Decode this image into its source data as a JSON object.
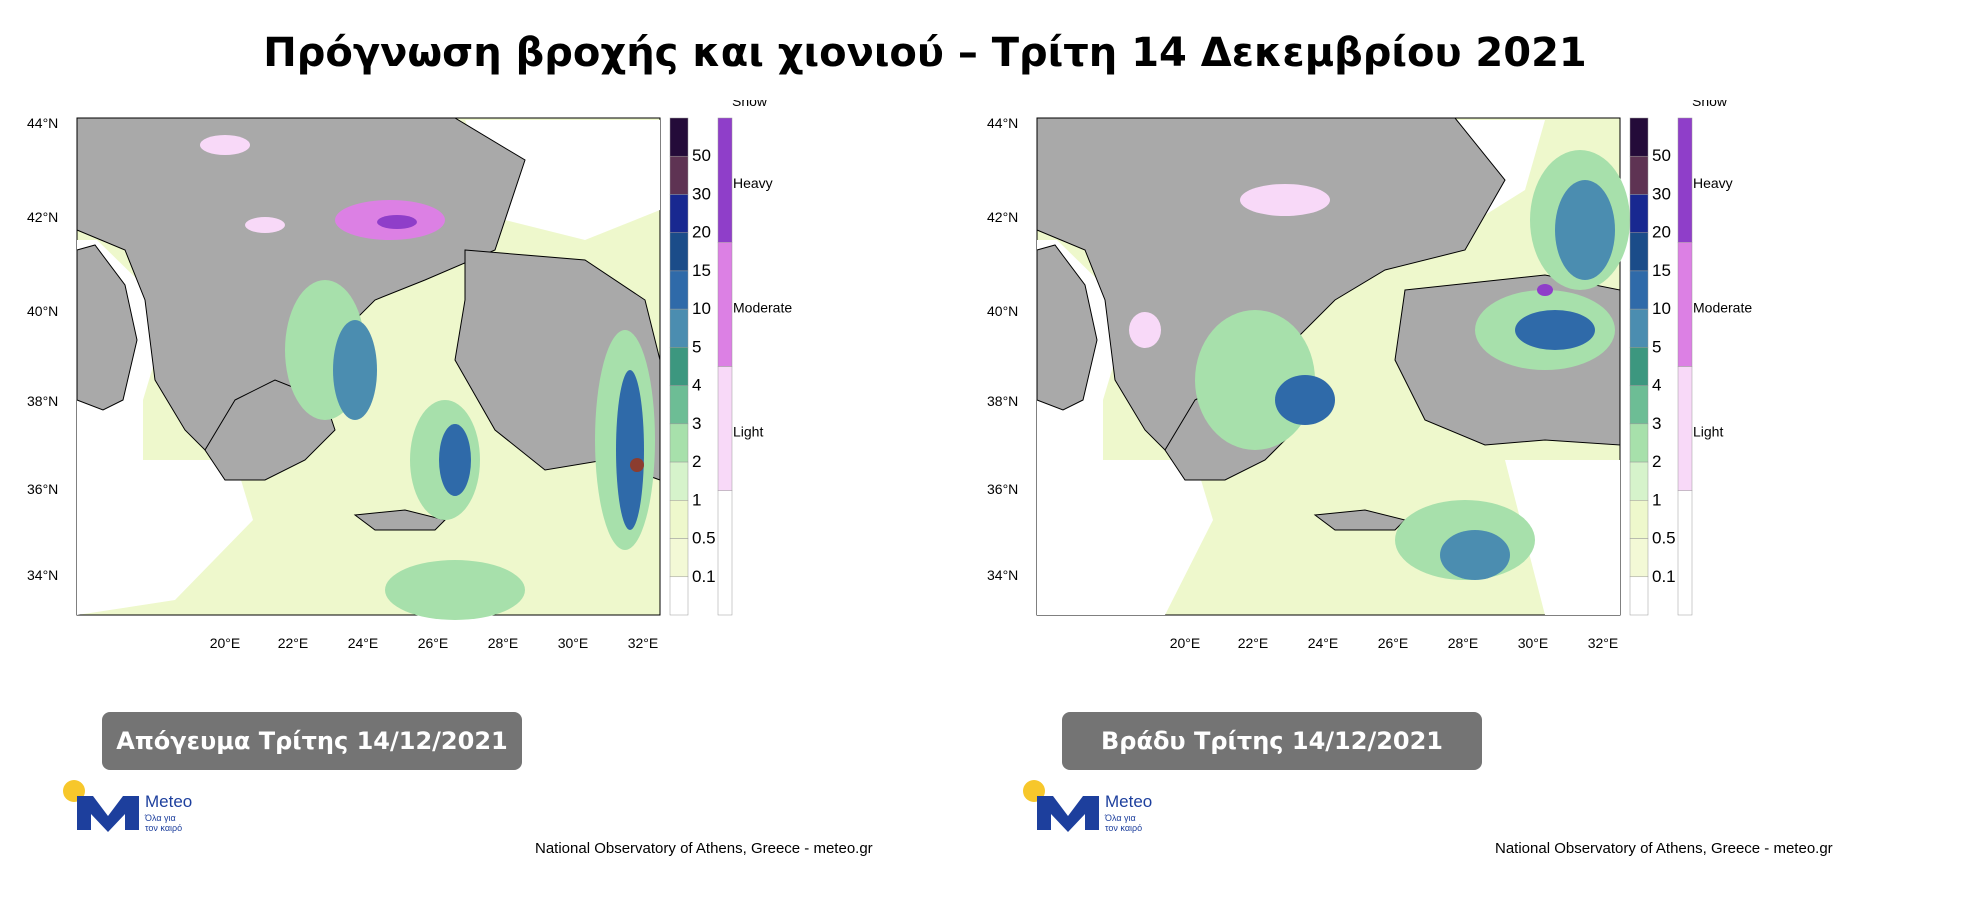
{
  "title": "Πρόγνωση βροχής και χιονιού – Τρίτη 14 Δεκεμβρίου 2021",
  "panels": [
    {
      "badge": "Απόγευμα Τρίτης 14/12/2021"
    },
    {
      "badge": "Βράδυ Τρίτης 14/12/2021"
    }
  ],
  "credit": "National Observatory of Athens, Greece - meteo.gr",
  "logo": {
    "brand": "Meteo",
    "tagline_1": "Όλα για",
    "tagline_2": "τον καιρό"
  },
  "latitudes": [
    "44°N",
    "42°N",
    "40°N",
    "38°N",
    "36°N",
    "34°N"
  ],
  "longitudes": [
    "20°E",
    "22°E",
    "24°E",
    "26°E",
    "28°E",
    "30°E",
    "32°E"
  ],
  "rain_scale": {
    "levels": [
      "50",
      "30",
      "20",
      "15",
      "10",
      "5",
      "4",
      "3",
      "2",
      "1",
      "0.5",
      "0.1"
    ],
    "colors": [
      "#240b39",
      "#5e3353",
      "#182890",
      "#1b4c89",
      "#2f6aa9",
      "#4b8db0",
      "#3c977f",
      "#6dbd95",
      "#a7e0ab",
      "#d6f3cb",
      "#eef8cc",
      "#f3f9d6",
      "#ffffff"
    ]
  },
  "snow_scale": {
    "title": "Snow",
    "levels": [
      "Heavy",
      "Moderate",
      "Light"
    ],
    "colors": [
      "#8f3ec9",
      "#dc80e4",
      "#f8d9f8",
      "#ffffff"
    ]
  },
  "map_colors": {
    "land": "#a9a9a9",
    "sea": "#ffffff",
    "rain_light": "#eef8cc",
    "rain_mid": "#a7e0ab",
    "rain_heavy": "#2f6aa9"
  }
}
